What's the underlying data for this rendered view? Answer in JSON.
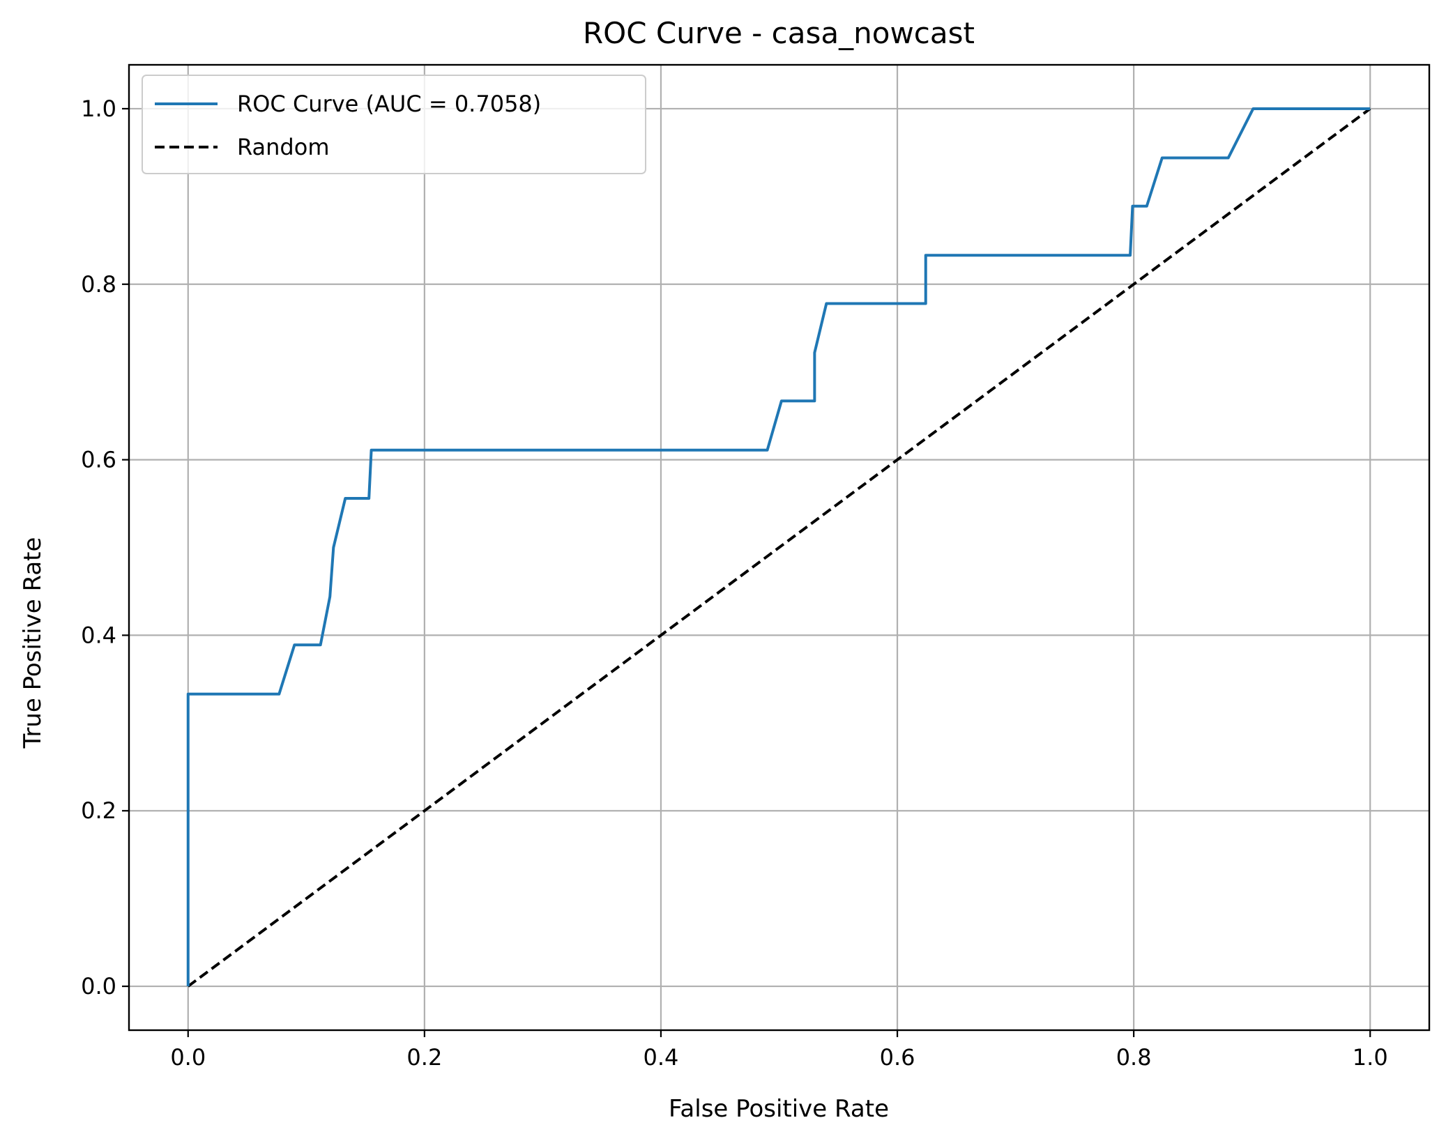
{
  "chart_data": {
    "type": "line",
    "title": "ROC Curve - casa_nowcast",
    "xlabel": "False Positive Rate",
    "ylabel": "True Positive Rate",
    "xlim": [
      -0.05,
      1.05
    ],
    "ylim": [
      -0.05,
      1.05
    ],
    "xticks": [
      "0.0",
      "0.2",
      "0.4",
      "0.6",
      "0.8",
      "1.0"
    ],
    "yticks": [
      "0.0",
      "0.2",
      "0.4",
      "0.6",
      "0.8",
      "1.0"
    ],
    "grid": true,
    "legend_position": "upper-left",
    "series": [
      {
        "name": "ROC Curve (AUC = 0.7058)",
        "color": "#1f77b4",
        "style": "solid",
        "x": [
          0.0,
          0.0,
          0.077,
          0.09,
          0.112,
          0.12,
          0.123,
          0.133,
          0.153,
          0.155,
          0.49,
          0.502,
          0.53,
          0.53,
          0.54,
          0.624,
          0.624,
          0.797,
          0.799,
          0.811,
          0.824,
          0.88,
          0.901,
          1.0
        ],
        "y": [
          0.0,
          0.333,
          0.333,
          0.389,
          0.389,
          0.444,
          0.5,
          0.556,
          0.556,
          0.611,
          0.611,
          0.667,
          0.667,
          0.722,
          0.778,
          0.778,
          0.833,
          0.833,
          0.889,
          0.889,
          0.944,
          0.944,
          1.0,
          1.0
        ]
      },
      {
        "name": "Random",
        "color": "#000000",
        "style": "dashed",
        "x": [
          0.0,
          1.0
        ],
        "y": [
          0.0,
          1.0
        ]
      }
    ]
  }
}
